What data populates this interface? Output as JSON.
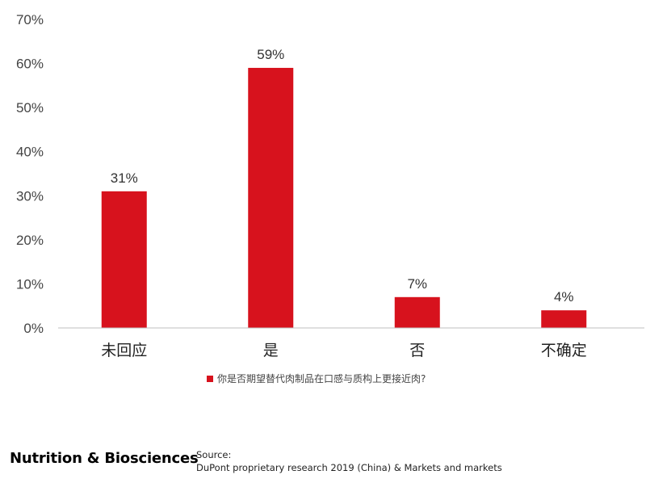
{
  "chart_data": {
    "type": "bar",
    "categories": [
      "未回应",
      "是",
      "否",
      "不确定"
    ],
    "series": [
      {
        "name": "你是否期望替代肉制品在口感与质构上更接近肉?",
        "values": [
          31,
          59,
          7,
          4
        ]
      }
    ],
    "value_labels": [
      "31%",
      "59%",
      "7%",
      "4%"
    ],
    "yticks": [
      "0%",
      "10%",
      "20%",
      "30%",
      "40%",
      "50%",
      "60%",
      "70%"
    ],
    "ylim": [
      0,
      70
    ],
    "grid": false,
    "legend_position": "bottom-center",
    "bar_color": "#d7121d",
    "title": "",
    "xlabel": "",
    "ylabel": ""
  },
  "legend": {
    "label": "你是否期望替代肉制品在口感与质构上更接近肉?"
  },
  "footer": {
    "brand": "Nutrition & Biosciences",
    "source_title": "Source:",
    "source_text": "DuPont proprietary research 2019 (China) & Markets and markets"
  }
}
